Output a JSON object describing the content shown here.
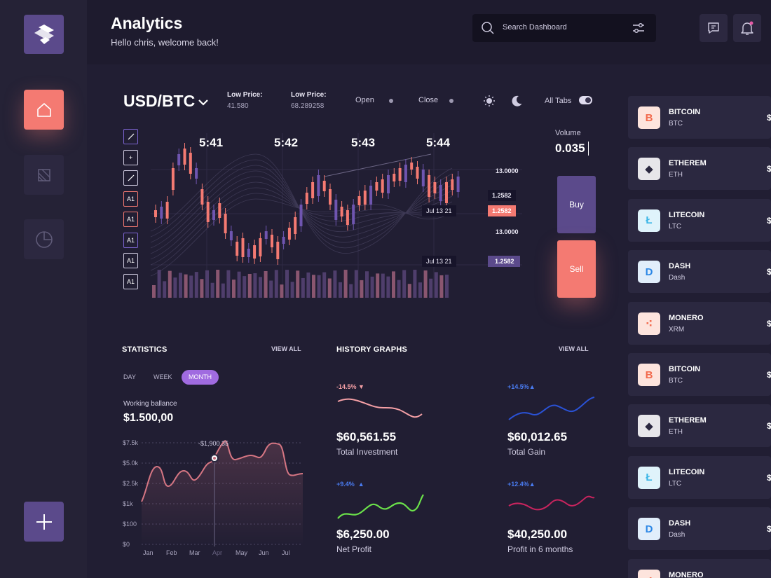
{
  "header": {
    "title": "Analytics",
    "subtitle": "Hello chris, welcome back!",
    "search_placeholder": "Search Dashboard"
  },
  "trade": {
    "pair": "USD/BTC",
    "low_price_1_label": "Low Price:",
    "low_price_1_value": "41.580",
    "low_price_2_label": "Low Price:",
    "low_price_2_value": "68.289258",
    "open_label": "Open",
    "close_label": "Close",
    "all_tabs_label": "All Tabs",
    "times": [
      "5:41",
      "5:42",
      "5:43",
      "5:44"
    ],
    "price_labels": [
      "13.0000",
      "1.2582",
      "1.2582",
      "13.0000",
      "1.2582"
    ],
    "date_labels": [
      "Jul 13 21",
      "Jul 13 21"
    ],
    "tools": [
      "",
      "+",
      "",
      "A1",
      "A1",
      "A1",
      "A1",
      "A1"
    ],
    "volume_label": "Volume",
    "volume_value": "0.035",
    "buy_label": "Buy",
    "sell_label": "Sell"
  },
  "statistics": {
    "title": "STATISTICS",
    "view_all": "VIEW ALL",
    "tabs": [
      "DAY",
      "WEEK",
      "MONTH"
    ],
    "active_tab": "MONTH",
    "working_balance_label": "Working ballance",
    "working_balance_value": "$1.500,00",
    "tooltip": "-$1,900.35",
    "y_ticks": [
      "$7.5k",
      "$5.0k",
      "$2.5k",
      "$1k",
      "$100",
      "$0"
    ],
    "x_ticks": [
      "Jan",
      "Feb",
      "Mar",
      "Apr",
      "May",
      "Jun",
      "Jul"
    ]
  },
  "history": {
    "title": "HISTORY GRAPHS",
    "view_all": "VIEW ALL",
    "cards": [
      {
        "pct": "-14.5%",
        "value": "$60,561.55",
        "label": "Total Investment",
        "color": "#f5a0a6"
      },
      {
        "pct": "+14.5%",
        "value": "$60,012.65",
        "label": "Total Gain",
        "color": "#2a52d6"
      },
      {
        "pct": "+9.4%",
        "value": "$6,250.00",
        "label": "Net Profit",
        "color": "#6be24a"
      },
      {
        "pct": "+12.4%",
        "value": "$40,250.00",
        "label": "Profit in 6 months",
        "color": "#c8245e"
      }
    ]
  },
  "coins": [
    {
      "name": "BITCOIN",
      "symbol": "BTC",
      "amount": "$"
    },
    {
      "name": "ETHEREM",
      "symbol": "ETH",
      "amount": "$"
    },
    {
      "name": "LITECOIN",
      "symbol": "LTC",
      "amount": "$"
    },
    {
      "name": "DASH",
      "symbol": "Dash",
      "amount": "$"
    },
    {
      "name": "MONERO",
      "symbol": "XRM",
      "amount": "$"
    },
    {
      "name": "BITCOIN",
      "symbol": "BTC",
      "amount": "$"
    },
    {
      "name": "ETHEREM",
      "symbol": "ETH",
      "amount": "$"
    },
    {
      "name": "LITECOIN",
      "symbol": "LTC",
      "amount": "$"
    },
    {
      "name": "DASH",
      "symbol": "Dash",
      "amount": "$"
    },
    {
      "name": "MONERO",
      "symbol": "",
      "amount": ""
    }
  ],
  "colors": {
    "accent": "#f47a72",
    "purple": "#5b4a8b",
    "background": "#211e33",
    "candle_up": "#f47a72",
    "candle_down": "#6f55b0"
  }
}
